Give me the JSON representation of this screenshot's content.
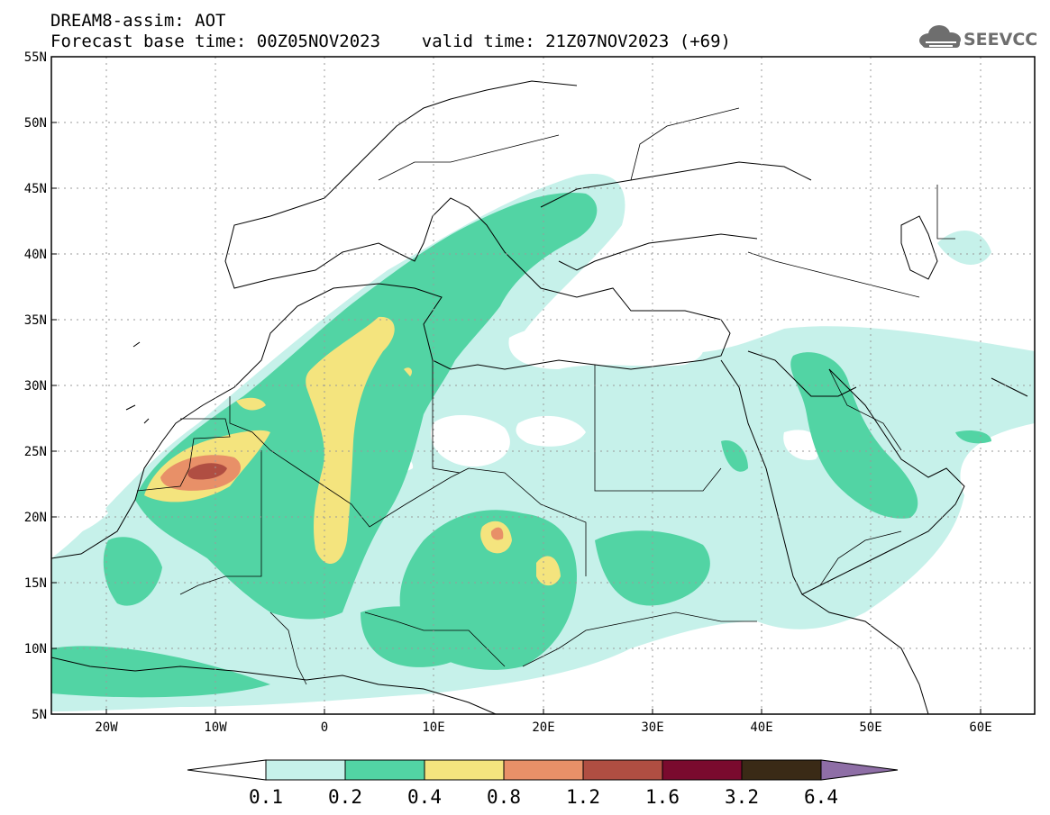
{
  "header": {
    "title_line1": "DREAM8-assim: AOT",
    "title_line2": "Forecast base time: 00Z05NOV2023    valid time: 21Z07NOV2023 (+69)"
  },
  "logo": {
    "text": "SEEVCCC",
    "icon": "cloud-icon"
  },
  "map": {
    "lat_labels": [
      "55N",
      "50N",
      "45N",
      "40N",
      "35N",
      "30N",
      "25N",
      "20N",
      "15N",
      "10N",
      "5N"
    ],
    "lat_values": [
      55,
      50,
      45,
      40,
      35,
      30,
      25,
      20,
      15,
      10,
      5
    ],
    "lon_labels": [
      "20W",
      "10W",
      "0",
      "10E",
      "20E",
      "30E",
      "40E",
      "50E",
      "60E"
    ],
    "lon_values": [
      -20,
      -10,
      0,
      10,
      20,
      30,
      40,
      50,
      60
    ],
    "lon_range": [
      -25,
      65
    ],
    "lat_range": [
      5,
      55
    ]
  },
  "colorbar": {
    "labels": [
      "0.1",
      "0.2",
      "0.4",
      "0.8",
      "1.2",
      "1.6",
      "3.2",
      "6.4"
    ],
    "low_color": "#ffffff",
    "high_color": "#8e6ea6",
    "colors": [
      "#c6f1ea",
      "#52d4a4",
      "#f4e47e",
      "#e89068",
      "#b04e42",
      "#7a0a2e",
      "#3a2a16"
    ]
  },
  "colors": {
    "level1": "#c6f1ea",
    "level2": "#52d4a4",
    "level3": "#f4e47e",
    "level4": "#e89068",
    "level5": "#b04e42"
  }
}
